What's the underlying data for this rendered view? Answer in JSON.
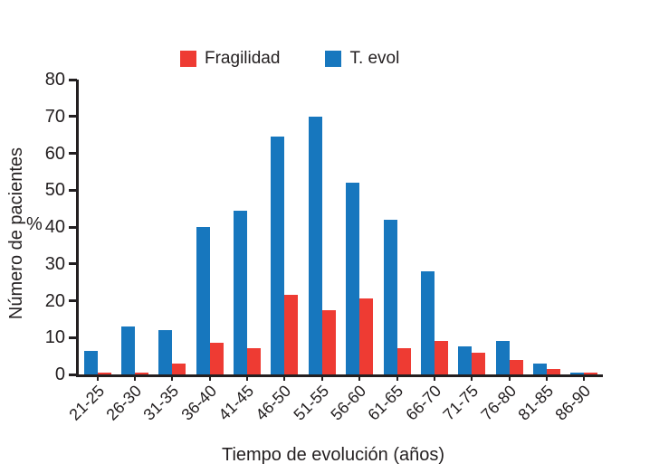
{
  "chart_data": {
    "type": "bar",
    "title": "",
    "xlabel": "Tiempo de evolución (años)",
    "ylabel": "Número de pacientes",
    "ylabel_unit": "%",
    "categories": [
      "21-25",
      "26-30",
      "31-35",
      "36-40",
      "41-45",
      "46-50",
      "51-55",
      "56-60",
      "61-65",
      "66-70",
      "71-75",
      "76-80",
      "81-85",
      "86-90"
    ],
    "series": [
      {
        "name": "Fragilidad",
        "color": "#EE3B33",
        "values": [
          0.5,
          0.5,
          3,
          8.5,
          7,
          21.5,
          17.5,
          20.5,
          7,
          9,
          6,
          4,
          1.5,
          0.5
        ]
      },
      {
        "name": "T. evol",
        "color": "#1777BE",
        "values": [
          6.5,
          13,
          12,
          40,
          44.5,
          64.5,
          70,
          52,
          42,
          28,
          7.5,
          9,
          3,
          0.5
        ]
      }
    ],
    "bar_order_on_axis": [
      "T. evol",
      "Fragilidad"
    ],
    "ylim": [
      0,
      80
    ],
    "yticks": [
      0,
      10,
      20,
      30,
      40,
      50,
      60,
      70,
      80
    ],
    "grid": false,
    "legend_position": "top"
  },
  "colors": {
    "axis": "#231f20",
    "background": "#ffffff"
  }
}
